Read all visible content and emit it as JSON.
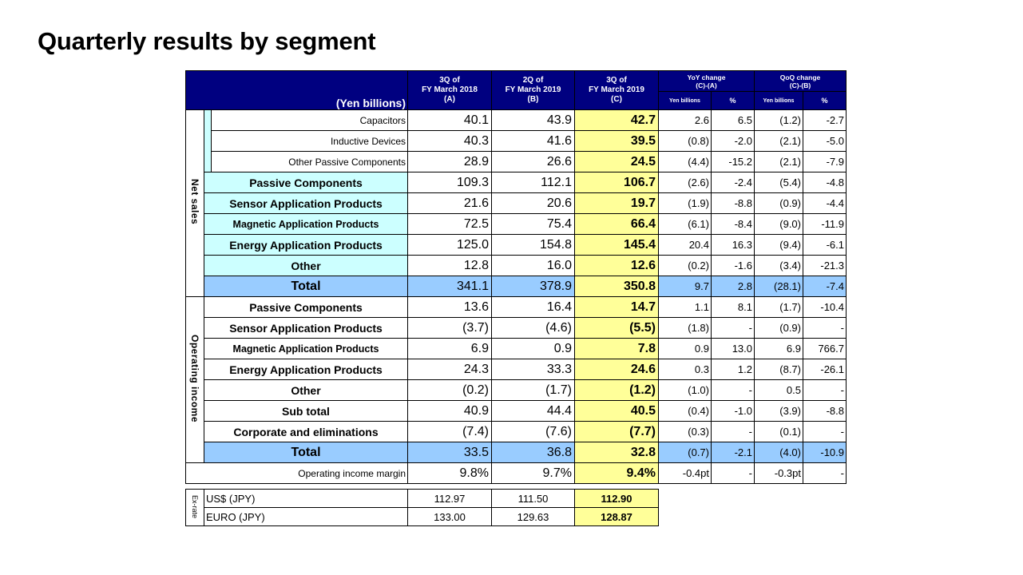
{
  "title": "Quarterly results by segment",
  "header": {
    "unit_label": "(Yen billions)",
    "col_a": [
      "3Q of",
      "FY March 2018",
      "(A)"
    ],
    "col_b": [
      "2Q of",
      "FY March 2019",
      "(B)"
    ],
    "col_c": [
      "3Q of",
      "FY March 2019",
      "(C)"
    ],
    "yoy": [
      "YoY change",
      "(C)-(A)"
    ],
    "qoq": [
      "QoQ change",
      "(C)-(B)"
    ],
    "sub_yen": "Yen billions",
    "sub_pct": "%"
  },
  "sections": {
    "net_sales": "Net sales",
    "operating_income": "Operating income",
    "ex_rate": "Ex-rate"
  },
  "net_sales_rows": [
    {
      "label": "Capacitors",
      "a": "40.1",
      "b": "43.9",
      "c": "42.7",
      "yoy_yen": "2.6",
      "yoy_pct": "6.5",
      "qoq_yen": "(1.2)",
      "qoq_pct": "-2.7"
    },
    {
      "label": "Inductive Devices",
      "a": "40.3",
      "b": "41.6",
      "c": "39.5",
      "yoy_yen": "(0.8)",
      "yoy_pct": "-2.0",
      "qoq_yen": "(2.1)",
      "qoq_pct": "-5.0"
    },
    {
      "label": "Other Passive Components",
      "a": "28.9",
      "b": "26.6",
      "c": "24.5",
      "yoy_yen": "(4.4)",
      "yoy_pct": "-15.2",
      "qoq_yen": "(2.1)",
      "qoq_pct": "-7.9"
    },
    {
      "label": "Passive Components",
      "a": "109.3",
      "b": "112.1",
      "c": "106.7",
      "yoy_yen": "(2.6)",
      "yoy_pct": "-2.4",
      "qoq_yen": "(5.4)",
      "qoq_pct": "-4.8"
    },
    {
      "label": "Sensor Application Products",
      "a": "21.6",
      "b": "20.6",
      "c": "19.7",
      "yoy_yen": "(1.9)",
      "yoy_pct": "-8.8",
      "qoq_yen": "(0.9)",
      "qoq_pct": "-4.4"
    },
    {
      "label": "Magnetic Application Products",
      "a": "72.5",
      "b": "75.4",
      "c": "66.4",
      "yoy_yen": "(6.1)",
      "yoy_pct": "-8.4",
      "qoq_yen": "(9.0)",
      "qoq_pct": "-11.9"
    },
    {
      "label": "Energy Application Products",
      "a": "125.0",
      "b": "154.8",
      "c": "145.4",
      "yoy_yen": "20.4",
      "yoy_pct": "16.3",
      "qoq_yen": "(9.4)",
      "qoq_pct": "-6.1"
    },
    {
      "label": "Other",
      "a": "12.8",
      "b": "16.0",
      "c": "12.6",
      "yoy_yen": "(0.2)",
      "yoy_pct": "-1.6",
      "qoq_yen": "(3.4)",
      "qoq_pct": "-21.3"
    },
    {
      "label": "Total",
      "a": "341.1",
      "b": "378.9",
      "c": "350.8",
      "yoy_yen": "9.7",
      "yoy_pct": "2.8",
      "qoq_yen": "(28.1)",
      "qoq_pct": "-7.4"
    }
  ],
  "operating_income_rows": [
    {
      "label": "Passive Components",
      "a": "13.6",
      "b": "16.4",
      "c": "14.7",
      "yoy_yen": "1.1",
      "yoy_pct": "8.1",
      "qoq_yen": "(1.7)",
      "qoq_pct": "-10.4"
    },
    {
      "label": "Sensor Application Products",
      "a": "(3.7)",
      "b": "(4.6)",
      "c": "(5.5)",
      "yoy_yen": "(1.8)",
      "yoy_pct": "-",
      "qoq_yen": "(0.9)",
      "qoq_pct": "-"
    },
    {
      "label": "Magnetic Application Products",
      "a": "6.9",
      "b": "0.9",
      "c": "7.8",
      "yoy_yen": "0.9",
      "yoy_pct": "13.0",
      "qoq_yen": "6.9",
      "qoq_pct": "766.7"
    },
    {
      "label": "Energy Application Products",
      "a": "24.3",
      "b": "33.3",
      "c": "24.6",
      "yoy_yen": "0.3",
      "yoy_pct": "1.2",
      "qoq_yen": "(8.7)",
      "qoq_pct": "-26.1"
    },
    {
      "label": "Other",
      "a": "(0.2)",
      "b": "(1.7)",
      "c": "(1.2)",
      "yoy_yen": "(1.0)",
      "yoy_pct": "-",
      "qoq_yen": "0.5",
      "qoq_pct": "-"
    },
    {
      "label": "Sub total",
      "a": "40.9",
      "b": "44.4",
      "c": "40.5",
      "yoy_yen": "(0.4)",
      "yoy_pct": "-1.0",
      "qoq_yen": "(3.9)",
      "qoq_pct": "-8.8"
    },
    {
      "label": "Corporate and eliminations",
      "a": "(7.4)",
      "b": "(7.6)",
      "c": "(7.7)",
      "yoy_yen": "(0.3)",
      "yoy_pct": "-",
      "qoq_yen": "(0.1)",
      "qoq_pct": "-"
    },
    {
      "label": "Total",
      "a": "33.5",
      "b": "36.8",
      "c": "32.8",
      "yoy_yen": "(0.7)",
      "yoy_pct": "-2.1",
      "qoq_yen": "(4.0)",
      "qoq_pct": "-10.9"
    }
  ],
  "margin_row": {
    "label": "Operating income margin",
    "a": "9.8%",
    "b": "9.7%",
    "c": "9.4%",
    "yoy_yen": "-0.4pt",
    "yoy_pct": "-",
    "qoq_yen": "-0.3pt",
    "qoq_pct": "-"
  },
  "fx_rows": [
    {
      "label": "US$ (JPY)",
      "a": "112.97",
      "b": "111.50",
      "c": "112.90"
    },
    {
      "label": "EURO (JPY)",
      "a": "133.00",
      "b": "129.63",
      "c": "128.87"
    }
  ]
}
